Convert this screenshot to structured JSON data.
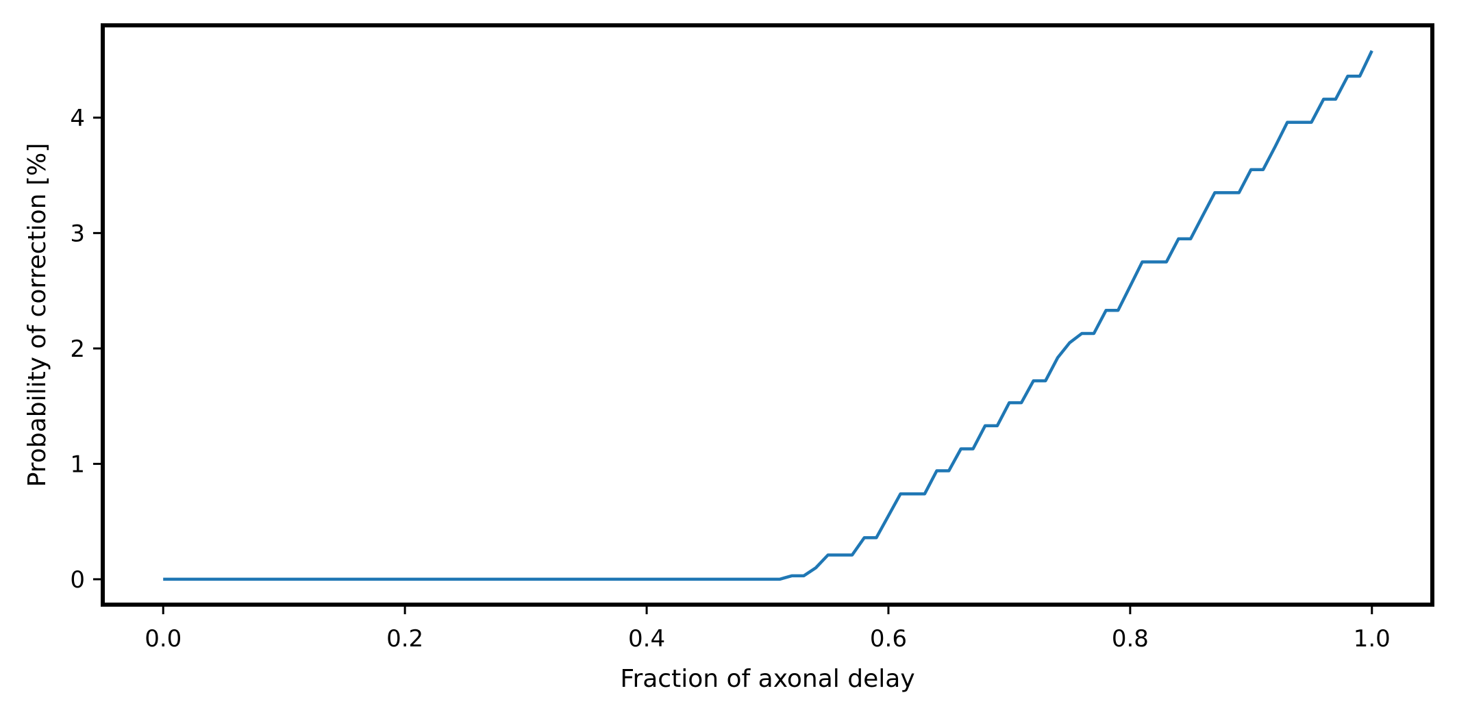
{
  "chart_data": {
    "type": "line",
    "title": "",
    "xlabel": "Fraction of axonal delay",
    "ylabel": "Probability of correction [%]",
    "xlim": [
      -0.05,
      1.05
    ],
    "ylim": [
      -0.22,
      4.8
    ],
    "xticks": [
      0.0,
      0.2,
      0.4,
      0.6,
      0.8,
      1.0
    ],
    "xtick_labels": [
      "0.0",
      "0.2",
      "0.4",
      "0.6",
      "0.8",
      "1.0"
    ],
    "yticks": [
      0,
      1,
      2,
      3,
      4
    ],
    "ytick_labels": [
      "0",
      "1",
      "2",
      "3",
      "4"
    ],
    "grid": false,
    "legend": "none",
    "series": [
      {
        "color": "#1f77b4",
        "x": [
          0.0,
          0.51,
          0.52,
          0.53,
          0.54,
          0.55,
          0.56,
          0.57,
          0.58,
          0.59,
          0.6,
          0.61,
          0.62,
          0.63,
          0.64,
          0.65,
          0.66,
          0.67,
          0.68,
          0.69,
          0.7,
          0.71,
          0.72,
          0.73,
          0.74,
          0.75,
          0.76,
          0.77,
          0.78,
          0.79,
          0.8,
          0.81,
          0.82,
          0.83,
          0.84,
          0.85,
          0.86,
          0.87,
          0.88,
          0.89,
          0.9,
          0.91,
          0.92,
          0.93,
          0.94,
          0.95,
          0.96,
          0.97,
          0.98,
          0.99,
          1.0
        ],
        "y": [
          0.0,
          0.0,
          0.03,
          0.03,
          0.1,
          0.21,
          0.21,
          0.21,
          0.36,
          0.36,
          0.55,
          0.74,
          0.74,
          0.74,
          0.94,
          0.94,
          1.13,
          1.13,
          1.33,
          1.33,
          1.53,
          1.53,
          1.72,
          1.72,
          1.92,
          2.05,
          2.13,
          2.13,
          2.33,
          2.33,
          2.54,
          2.75,
          2.75,
          2.75,
          2.95,
          2.95,
          3.15,
          3.35,
          3.35,
          3.35,
          3.55,
          3.55,
          3.75,
          3.96,
          3.96,
          3.96,
          4.16,
          4.16,
          4.36,
          4.36,
          4.58
        ]
      }
    ]
  }
}
